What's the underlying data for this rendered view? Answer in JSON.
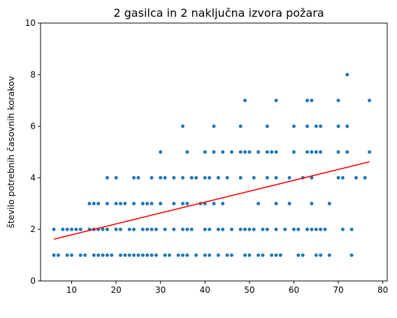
{
  "chart_data": {
    "type": "scatter",
    "title": "2 gasilca in 2 naključna izvora požara",
    "xlabel": "",
    "ylabel": "število potrebnih časovnih korakov",
    "xlim": [
      3,
      81
    ],
    "ylim": [
      0,
      10
    ],
    "xticks": [
      10,
      20,
      30,
      40,
      50,
      60,
      70,
      80
    ],
    "yticks": [
      0,
      2,
      4,
      6,
      8,
      10
    ],
    "grid": false,
    "colors": {
      "points": "#1f77b4",
      "fit_line": "#ff0000"
    },
    "fit_line": {
      "x": [
        6,
        77
      ],
      "y": [
        1.62,
        4.62
      ]
    },
    "points": {
      "1": [
        6,
        7,
        9,
        10,
        12,
        13,
        15,
        16,
        17,
        18,
        19,
        21,
        22,
        23,
        24,
        25,
        26,
        27,
        28,
        29,
        31,
        32,
        34,
        35,
        36,
        38,
        40,
        41,
        43,
        45,
        46,
        49,
        50,
        52,
        53,
        55,
        56,
        57,
        61,
        62,
        65,
        66,
        68,
        73
      ],
      "2": [
        6,
        8,
        9,
        10,
        11,
        12,
        14,
        15,
        16,
        17,
        18,
        20,
        21,
        23,
        24,
        26,
        27,
        28,
        29,
        31,
        33,
        35,
        36,
        37,
        40,
        41,
        43,
        44,
        46,
        48,
        49,
        50,
        51,
        53,
        54,
        56,
        58,
        60,
        61,
        63,
        64,
        65,
        66,
        67,
        71,
        73
      ],
      "3": [
        14,
        15,
        16,
        18,
        20,
        21,
        22,
        24,
        26,
        27,
        28,
        30,
        33,
        35,
        36,
        39,
        40,
        42,
        44,
        52,
        56,
        59,
        64,
        68
      ],
      "4": [
        18,
        20,
        24,
        25,
        28,
        30,
        31,
        33,
        35,
        37,
        38,
        40,
        41,
        43,
        45,
        48,
        51,
        54,
        56,
        59,
        62,
        64,
        70,
        71,
        74,
        76
      ],
      "5": [
        30,
        36,
        40,
        42,
        44,
        46,
        48,
        49,
        50,
        52,
        54,
        55,
        56,
        60,
        63,
        64,
        65,
        66,
        70,
        72,
        77
      ],
      "6": [
        35,
        42,
        48,
        54,
        60,
        63,
        65,
        66,
        70,
        72
      ],
      "7": [
        49,
        56,
        63,
        64,
        70,
        77
      ],
      "8": [
        72
      ]
    }
  }
}
